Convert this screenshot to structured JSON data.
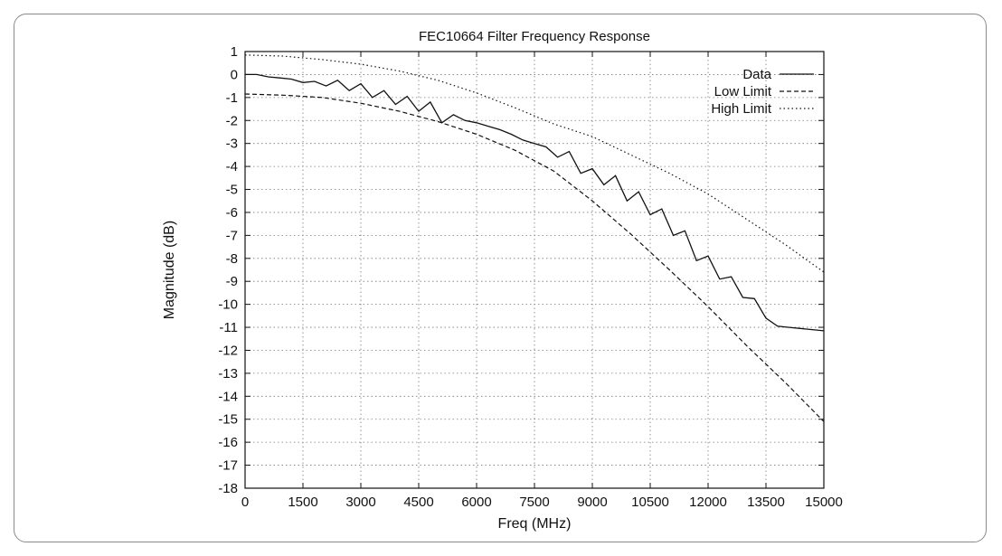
{
  "chart_data": {
    "type": "line",
    "title": "FEC10664 Filter Frequency Response",
    "xlabel": "Freq (MHz)",
    "ylabel": "Magnitude (dB)",
    "xlim": [
      0,
      15000
    ],
    "ylim": [
      -18,
      1
    ],
    "x_ticks": [
      0,
      1500,
      3000,
      4500,
      6000,
      7500,
      9000,
      10500,
      12000,
      13500,
      15000
    ],
    "y_ticks": [
      1,
      0,
      -1,
      -2,
      -3,
      -4,
      -5,
      -6,
      -7,
      -8,
      -9,
      -10,
      -11,
      -12,
      -13,
      -14,
      -15,
      -16,
      -17,
      -18
    ],
    "grid": true,
    "legend_position": "top-right",
    "series": [
      {
        "name": "Data",
        "line_style": "solid",
        "points": [
          [
            0,
            0.0
          ],
          [
            300,
            0.0
          ],
          [
            600,
            -0.1
          ],
          [
            900,
            -0.15
          ],
          [
            1200,
            -0.2
          ],
          [
            1500,
            -0.35
          ],
          [
            1800,
            -0.3
          ],
          [
            2100,
            -0.5
          ],
          [
            2400,
            -0.25
          ],
          [
            2700,
            -0.7
          ],
          [
            3000,
            -0.4
          ],
          [
            3300,
            -1.0
          ],
          [
            3600,
            -0.7
          ],
          [
            3900,
            -1.3
          ],
          [
            4200,
            -0.95
          ],
          [
            4500,
            -1.6
          ],
          [
            4800,
            -1.2
          ],
          [
            5100,
            -2.1
          ],
          [
            5400,
            -1.75
          ],
          [
            5700,
            -2.0
          ],
          [
            6000,
            -2.1
          ],
          [
            6300,
            -2.25
          ],
          [
            6600,
            -2.4
          ],
          [
            6900,
            -2.6
          ],
          [
            7200,
            -2.85
          ],
          [
            7500,
            -3.0
          ],
          [
            7800,
            -3.15
          ],
          [
            8100,
            -3.6
          ],
          [
            8400,
            -3.35
          ],
          [
            8700,
            -4.3
          ],
          [
            9000,
            -4.1
          ],
          [
            9300,
            -4.8
          ],
          [
            9600,
            -4.4
          ],
          [
            9900,
            -5.5
          ],
          [
            10200,
            -5.1
          ],
          [
            10500,
            -6.1
          ],
          [
            10800,
            -5.85
          ],
          [
            11100,
            -7.0
          ],
          [
            11400,
            -6.8
          ],
          [
            11700,
            -8.1
          ],
          [
            12000,
            -7.9
          ],
          [
            12300,
            -8.9
          ],
          [
            12600,
            -8.8
          ],
          [
            12900,
            -9.7
          ],
          [
            13200,
            -9.75
          ],
          [
            13500,
            -10.6
          ],
          [
            13800,
            -10.95
          ],
          [
            14100,
            -11.0
          ],
          [
            15000,
            -11.15
          ]
        ]
      },
      {
        "name": "Low Limit",
        "line_style": "dashed",
        "points": [
          [
            0,
            -0.85
          ],
          [
            1000,
            -0.9
          ],
          [
            2000,
            -1.0
          ],
          [
            3000,
            -1.25
          ],
          [
            4000,
            -1.6
          ],
          [
            5000,
            -2.05
          ],
          [
            6000,
            -2.6
          ],
          [
            7000,
            -3.3
          ],
          [
            8000,
            -4.2
          ],
          [
            9000,
            -5.5
          ],
          [
            10000,
            -6.95
          ],
          [
            11000,
            -8.5
          ],
          [
            12000,
            -10.1
          ],
          [
            13000,
            -11.8
          ],
          [
            14000,
            -13.4
          ],
          [
            15000,
            -15.1
          ]
        ]
      },
      {
        "name": "High Limit",
        "line_style": "dotted",
        "points": [
          [
            0,
            0.85
          ],
          [
            1000,
            0.8
          ],
          [
            2000,
            0.65
          ],
          [
            3000,
            0.45
          ],
          [
            4000,
            0.15
          ],
          [
            5000,
            -0.25
          ],
          [
            6000,
            -0.8
          ],
          [
            7000,
            -1.45
          ],
          [
            8000,
            -2.15
          ],
          [
            9000,
            -2.7
          ],
          [
            10000,
            -3.5
          ],
          [
            11000,
            -4.3
          ],
          [
            12000,
            -5.2
          ],
          [
            13000,
            -6.3
          ],
          [
            14000,
            -7.4
          ],
          [
            15000,
            -8.6
          ]
        ]
      }
    ]
  }
}
